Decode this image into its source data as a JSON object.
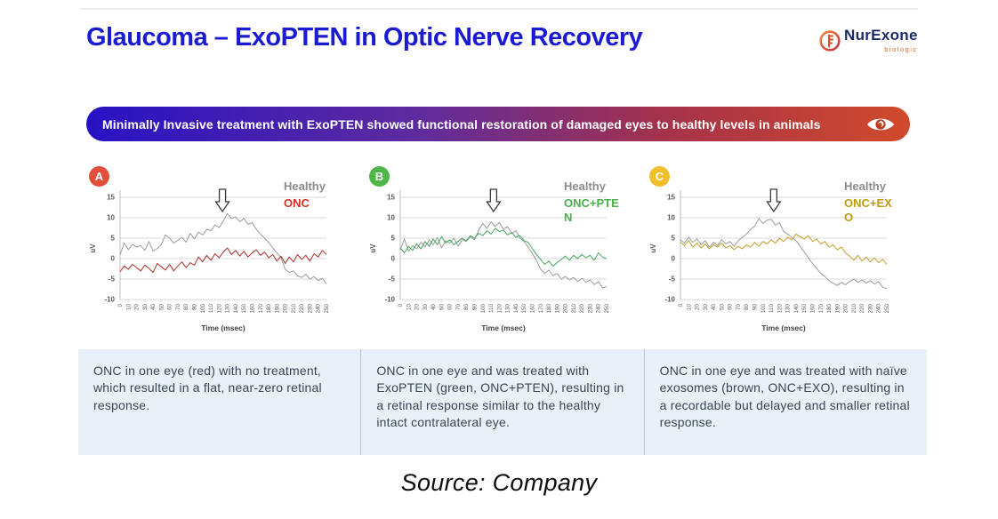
{
  "header": {
    "title": "Glaucoma – ExoPTEN in Optic Nerve Recovery",
    "title_color": "#1b1bd1",
    "logo": {
      "name": "NurExone",
      "subtitle": "biologic",
      "name_color": "#1b2a6b",
      "accent_color": "#e0622d"
    }
  },
  "banner": {
    "text": "Minimally Invasive treatment with ExoPTEN showed functional restoration of damaged eyes to healthy levels in animals",
    "gradient": [
      "#2712c4",
      "#5e2b9f",
      "#a5324b",
      "#d14a2b"
    ],
    "icon": "eye-icon"
  },
  "panels": [
    {
      "badge": "A",
      "badge_color": "#e2503d",
      "caption": "ONC in one eye (red) with no treatment, which resulted in a flat, near-zero retinal response."
    },
    {
      "badge": "B",
      "badge_color": "#4eb748",
      "caption": "ONC in one eye and was treated with ExoPTEN (green, ONC+PTEN), resulting in a retinal response similar to the healthy intact contralateral eye."
    },
    {
      "badge": "C",
      "badge_color": "#f1bf2b",
      "caption": "ONC in one eye and was treated with naïve exosomes (brown, ONC+EXO), resulting in a recordable but delayed and smaller retinal response."
    }
  ],
  "chart_data": [
    {
      "type": "line",
      "xlabel": "Time (msec)",
      "ylabel": "uV",
      "xlim": [
        0,
        250
      ],
      "ylim": [
        -10,
        15
      ],
      "y_ticks": [
        15,
        10,
        5,
        0,
        -5,
        -10
      ],
      "x_tick_step": 10,
      "x_step": 5,
      "arrow_x": 124,
      "grid": true,
      "legend_position": "top-right",
      "series": [
        {
          "name": "Healthy",
          "color": "#9c9c9c",
          "legend_color": "#8c8c8c",
          "values": [
            1.0,
            3.8,
            2.2,
            3.5,
            2.8,
            3.2,
            2.0,
            4.2,
            1.8,
            2.5,
            3.5,
            5.8,
            5.0,
            3.8,
            4.5,
            5.2,
            4.0,
            6.2,
            4.8,
            6.5,
            5.8,
            7.2,
            6.8,
            8.2,
            7.6,
            9.2,
            11.0,
            9.8,
            10.2,
            9.0,
            9.8,
            8.4,
            8.8,
            7.2,
            6.0,
            5.0,
            4.0,
            2.6,
            1.4,
            0.2,
            -2.6,
            -3.4,
            -3.0,
            -4.2,
            -4.6,
            -3.8,
            -5.0,
            -4.4,
            -5.4,
            -4.8,
            -6.2
          ]
        },
        {
          "name": "ONC",
          "color": "#ab3228",
          "legend_color": "#d13324",
          "values": [
            -3.2,
            -1.8,
            -2.6,
            -1.4,
            -2.2,
            -3.0,
            -1.6,
            -2.4,
            -3.4,
            -1.2,
            -2.0,
            -2.8,
            -1.4,
            -3.0,
            -1.8,
            -0.8,
            -2.2,
            -1.0,
            -1.6,
            0.4,
            -0.8,
            0.8,
            -0.4,
            1.2,
            0.2,
            1.6,
            2.6,
            1.0,
            2.0,
            0.6,
            1.8,
            0.4,
            1.4,
            2.2,
            0.8,
            1.6,
            0.2,
            1.0,
            -0.6,
            0.6,
            -1.2,
            0.4,
            -0.8,
            1.0,
            -0.2,
            0.8,
            -0.6,
            1.2,
            0.4,
            2.0,
            1.0
          ]
        }
      ]
    },
    {
      "type": "line",
      "xlabel": "Time (msec)",
      "ylabel": "uV",
      "xlim": [
        0,
        250
      ],
      "ylim": [
        -10,
        15
      ],
      "y_ticks": [
        15,
        10,
        5,
        0,
        -5,
        -10
      ],
      "x_tick_step": 10,
      "x_step": 5,
      "arrow_x": 113,
      "grid": true,
      "legend_position": "top-right",
      "series": [
        {
          "name": "Healthy",
          "color": "#9c9c9c",
          "legend_color": "#8c8c8c",
          "values": [
            2.2,
            4.8,
            1.8,
            3.2,
            2.4,
            4.0,
            2.8,
            4.6,
            3.4,
            5.2,
            2.6,
            4.4,
            3.8,
            5.0,
            3.0,
            4.6,
            4.2,
            5.4,
            4.6,
            7.0,
            8.6,
            7.4,
            9.0,
            7.8,
            8.8,
            7.2,
            7.8,
            6.2,
            6.8,
            5.0,
            4.2,
            2.8,
            1.2,
            -0.4,
            -2.6,
            -3.6,
            -2.8,
            -4.2,
            -3.6,
            -5.0,
            -4.4,
            -5.2,
            -4.6,
            -5.6,
            -4.8,
            -5.8,
            -5.2,
            -6.4,
            -5.6,
            -7.2,
            -6.8
          ]
        },
        {
          "name": "ONC+PTEN",
          "color": "#44a75c",
          "legend_color": "#4bb04b",
          "values": [
            2.6,
            1.4,
            3.0,
            2.0,
            3.6,
            2.4,
            4.2,
            3.0,
            4.8,
            3.4,
            5.4,
            3.8,
            4.6,
            3.4,
            4.2,
            5.0,
            4.4,
            5.6,
            5.0,
            6.2,
            5.6,
            6.8,
            6.0,
            7.4,
            6.6,
            7.0,
            5.8,
            6.4,
            5.2,
            5.6,
            4.4,
            4.0,
            2.4,
            1.0,
            -0.2,
            -1.4,
            -0.6,
            -1.8,
            -1.0,
            -0.2,
            0.6,
            -0.4,
            0.8,
            0.0,
            1.0,
            0.2,
            0.8,
            -0.4,
            1.4,
            0.4,
            0.0
          ]
        }
      ]
    },
    {
      "type": "line",
      "xlabel": "Time (msec)",
      "ylabel": "uV",
      "xlim": [
        0,
        250
      ],
      "ylim": [
        -10,
        15
      ],
      "y_ticks": [
        15,
        10,
        5,
        0,
        -5,
        -10
      ],
      "x_tick_step": 10,
      "x_step": 5,
      "arrow_x": 113,
      "grid": true,
      "legend_position": "top-right",
      "series": [
        {
          "name": "Healthy",
          "color": "#9c9c9c",
          "legend_color": "#8c8c8c",
          "values": [
            4.6,
            3.8,
            5.2,
            4.0,
            4.8,
            3.4,
            4.4,
            2.8,
            4.0,
            3.2,
            4.6,
            3.6,
            4.2,
            3.0,
            4.4,
            5.2,
            6.0,
            7.2,
            8.0,
            9.8,
            8.6,
            9.4,
            9.6,
            8.2,
            8.8,
            6.6,
            6.0,
            5.2,
            4.4,
            3.0,
            1.6,
            0.2,
            -1.2,
            -2.4,
            -3.6,
            -4.4,
            -5.4,
            -6.0,
            -6.6,
            -5.8,
            -6.4,
            -5.6,
            -5.0,
            -5.8,
            -5.2,
            -6.0,
            -5.4,
            -6.2,
            -5.6,
            -7.0,
            -7.4
          ]
        },
        {
          "name": "ONC+EXO",
          "color": "#c4a02a",
          "legend_color": "#bf9a15",
          "values": [
            4.0,
            3.2,
            4.4,
            2.8,
            3.8,
            2.6,
            3.6,
            2.4,
            3.4,
            2.8,
            3.8,
            2.6,
            3.2,
            2.2,
            3.0,
            2.4,
            3.4,
            2.8,
            4.0,
            3.0,
            4.2,
            3.6,
            4.6,
            3.8,
            5.0,
            4.2,
            5.2,
            4.6,
            6.0,
            5.4,
            4.8,
            5.6,
            4.2,
            4.8,
            3.6,
            4.2,
            2.8,
            3.4,
            2.2,
            2.8,
            1.4,
            0.6,
            -0.4,
            0.8,
            -0.6,
            0.4,
            -0.8,
            0.2,
            -1.0,
            -0.2,
            -1.4
          ]
        }
      ]
    }
  ],
  "source": "Source: Company"
}
